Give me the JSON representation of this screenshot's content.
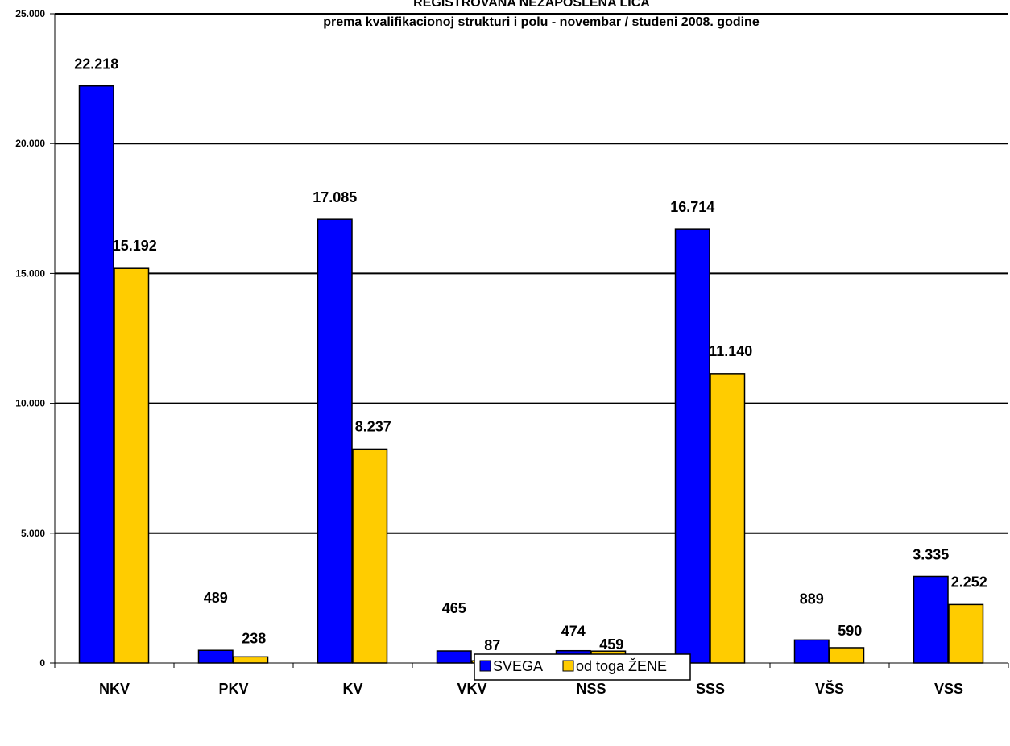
{
  "chart_data": {
    "type": "bar",
    "title": "REGISTROVANA NEZAPOSLENA LICA",
    "subtitle": "prema kvalifikacionoj strukturi i polu -  novembar / studeni 2008. godine",
    "xlabel": "",
    "ylabel": "",
    "ylim": [
      0,
      25000
    ],
    "yticks": [
      0,
      5000,
      10000,
      15000,
      20000,
      25000
    ],
    "ytick_labels": [
      "0",
      "5.000",
      "10.000",
      "15.000",
      "20.000",
      "25.000"
    ],
    "grid": true,
    "legend_position": "bottom-center",
    "categories": [
      "NKV",
      "PKV",
      "KV",
      "VKV",
      "NSS",
      "SSS",
      "VŠS",
      "VSS"
    ],
    "series": [
      {
        "name": "SVEGA",
        "color": "#0000ff",
        "values": [
          22218,
          489,
          17085,
          465,
          474,
          16714,
          889,
          3335
        ],
        "labels": [
          "22.218",
          "489",
          "17.085",
          "465",
          "474",
          "16.714",
          "889",
          "3.335"
        ]
      },
      {
        "name": "od toga ŽENE",
        "color": "#ffcc00",
        "values": [
          15192,
          238,
          8237,
          87,
          459,
          11140,
          590,
          2252
        ],
        "labels": [
          "15.192",
          "238",
          "8.237",
          "87",
          "459",
          "11.140",
          "590",
          "2.252"
        ]
      }
    ]
  }
}
